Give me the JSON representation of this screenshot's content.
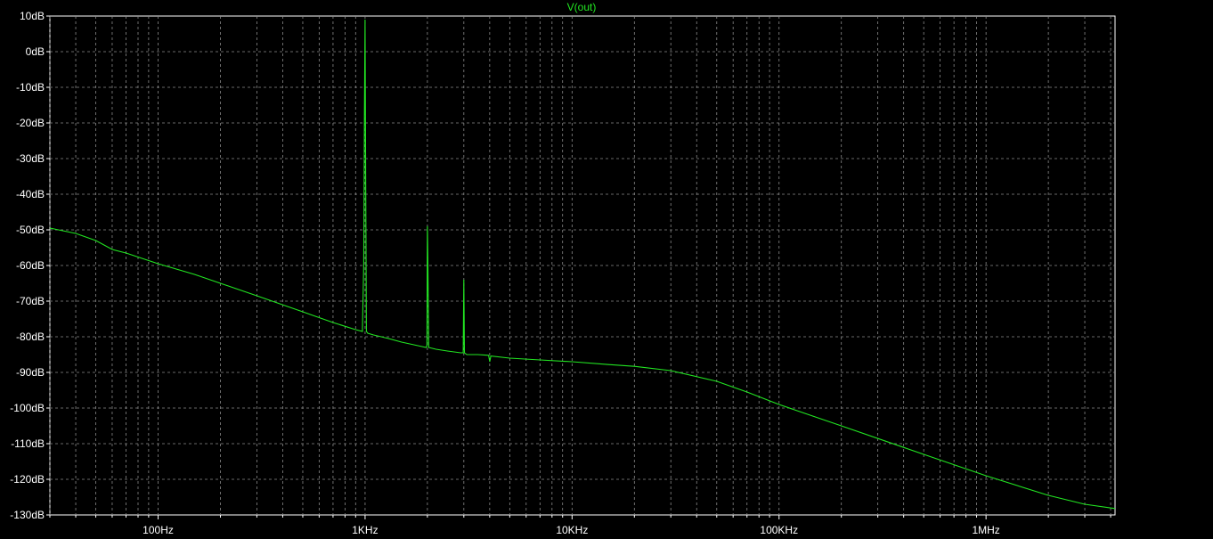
{
  "chart_data": {
    "type": "line",
    "x_scale": "log",
    "xlim": [
      30,
      4200000
    ],
    "ylim": [
      -130,
      10
    ],
    "grid": true,
    "x_ticks": [
      {
        "value": 100,
        "label": "100Hz"
      },
      {
        "value": 1000,
        "label": "1KHz"
      },
      {
        "value": 10000,
        "label": "10KHz"
      },
      {
        "value": 100000,
        "label": "100KHz"
      },
      {
        "value": 1000000,
        "label": "1MHz"
      }
    ],
    "y_ticks": [
      {
        "value": 10,
        "label": "10dB"
      },
      {
        "value": 0,
        "label": "0dB"
      },
      {
        "value": -10,
        "label": "-10dB"
      },
      {
        "value": -20,
        "label": "-20dB"
      },
      {
        "value": -30,
        "label": "-30dB"
      },
      {
        "value": -40,
        "label": "-40dB"
      },
      {
        "value": -50,
        "label": "-50dB"
      },
      {
        "value": -60,
        "label": "-60dB"
      },
      {
        "value": -70,
        "label": "-70dB"
      },
      {
        "value": -80,
        "label": "-80dB"
      },
      {
        "value": -90,
        "label": "-90dB"
      },
      {
        "value": -100,
        "label": "-100dB"
      },
      {
        "value": -110,
        "label": "-110dB"
      },
      {
        "value": -120,
        "label": "-120dB"
      },
      {
        "value": -130,
        "label": "-130dB"
      }
    ],
    "series": [
      {
        "name": "V(out)",
        "color": "#22e622",
        "x": [
          30,
          40,
          50,
          60,
          70,
          100,
          150,
          200,
          300,
          500,
          700,
          900,
          970,
          985,
          993,
          1000,
          1007,
          1015,
          1030,
          1100,
          1300,
          1500,
          1800,
          1970,
          1990,
          2000,
          2010,
          2030,
          2200,
          2500,
          2900,
          2980,
          3000,
          3020,
          3100,
          3500,
          3950,
          4000,
          4050,
          5000,
          7000,
          10000,
          15000,
          20000,
          30000,
          50000,
          70000,
          100000,
          200000,
          500000,
          1000000,
          2000000,
          3000000,
          4200000
        ],
        "y": [
          -49.5,
          -51,
          -53,
          -55.5,
          -56.5,
          -59.5,
          -62.5,
          -65,
          -68.5,
          -73,
          -76,
          -78,
          -78.5,
          -60,
          -18,
          9,
          -35,
          -78.5,
          -79,
          -79.5,
          -80.5,
          -81.5,
          -82.5,
          -83,
          -82.5,
          -49,
          -58,
          -83,
          -83.5,
          -84,
          -84.5,
          -84.5,
          -64,
          -84.5,
          -85,
          -85,
          -85.2,
          -87,
          -85.4,
          -86,
          -86.5,
          -87,
          -87.8,
          -88.3,
          -89.5,
          -92.5,
          -95.5,
          -99,
          -105,
          -113,
          -119,
          -124.5,
          -127,
          -128.2
        ]
      }
    ]
  }
}
